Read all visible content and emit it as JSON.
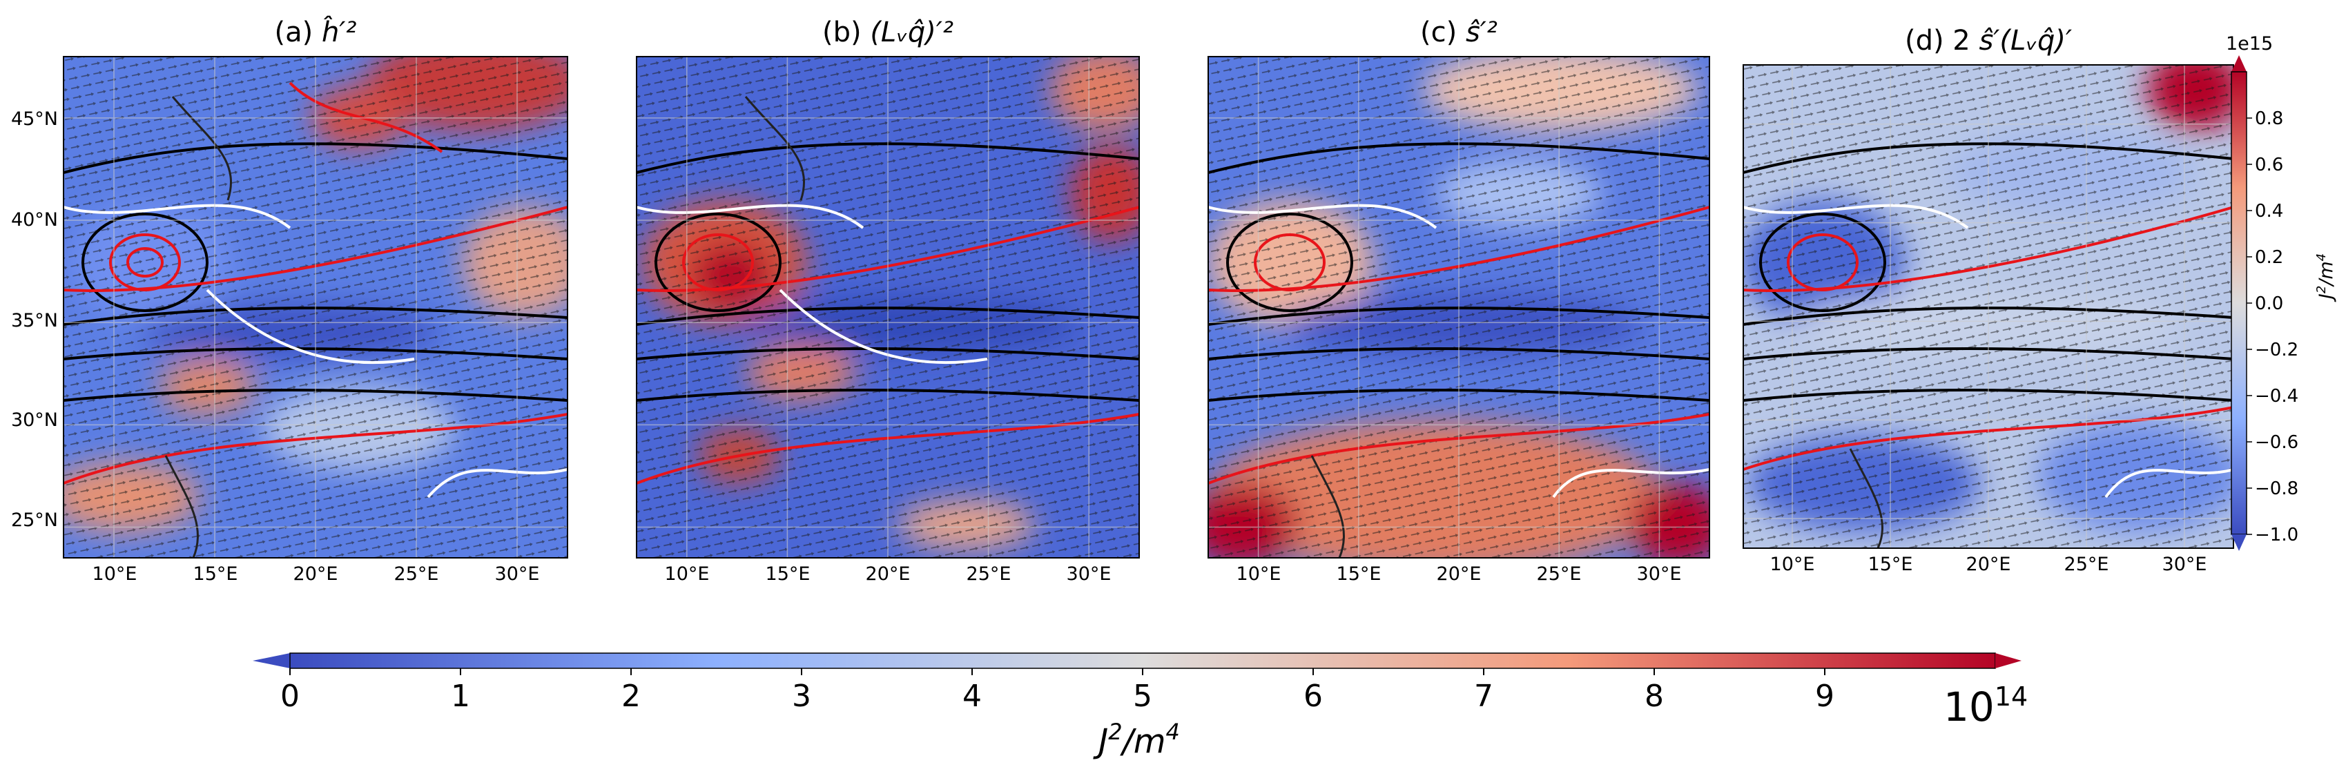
{
  "chart_data": {
    "type": "heatmap",
    "colormap": "coolwarm",
    "panels": [
      {
        "id": "a",
        "title_prefix": "(a) ",
        "title_math": "ĥ′²",
        "xlim": [
          7.5,
          32.5
        ],
        "ylim": [
          23.5,
          48
        ],
        "xticks": [
          "10°E",
          "15°E",
          "20°E",
          "25°E",
          "30°E"
        ],
        "xtick_values": [
          10,
          15,
          20,
          25,
          30
        ],
        "yticks": [
          "25°N",
          "30°N",
          "35°N",
          "40°N",
          "45°N"
        ],
        "ytick_values": [
          25,
          30,
          35,
          40,
          45
        ]
      },
      {
        "id": "b",
        "title_prefix": "(b) ",
        "title_math": "(Lᵥq̂)′²",
        "xlim": [
          7.5,
          32.5
        ],
        "ylim": [
          23.5,
          48
        ],
        "xticks": [
          "10°E",
          "15°E",
          "20°E",
          "25°E",
          "30°E"
        ],
        "xtick_values": [
          10,
          15,
          20,
          25,
          30
        ]
      },
      {
        "id": "c",
        "title_prefix": "(c) ",
        "title_math": "ŝ′²",
        "xlim": [
          7.5,
          32.5
        ],
        "ylim": [
          23.5,
          48
        ],
        "xticks": [
          "10°E",
          "15°E",
          "20°E",
          "25°E",
          "30°E"
        ],
        "xtick_values": [
          10,
          15,
          20,
          25,
          30
        ]
      },
      {
        "id": "d",
        "title_prefix": "(d) 2 ",
        "title_math": "ŝ′(Lᵥq̂)′",
        "xlim": [
          7.5,
          32.5
        ],
        "ylim": [
          23.5,
          48
        ],
        "xticks": [
          "10°E",
          "15°E",
          "20°E",
          "25°E",
          "30°E"
        ],
        "xtick_values": [
          10,
          15,
          20,
          25,
          30
        ]
      }
    ],
    "colorbar_main": {
      "orientation": "horizontal",
      "ticks": [
        "0",
        "1",
        "2",
        "3",
        "4",
        "5",
        "6",
        "7",
        "8",
        "9"
      ],
      "range": [
        0,
        10
      ],
      "offset_text": "10",
      "offset_exp": "14",
      "label_base": "J",
      "label_sup": "2",
      "label_mid": "/m",
      "label_sup2": "4"
    },
    "colorbar_d": {
      "orientation": "vertical",
      "ticks": [
        "0.8",
        "0.6",
        "0.4",
        "0.2",
        "0.0",
        "−0.2",
        "−0.4",
        "−0.6",
        "−0.8",
        "−1.0"
      ],
      "range": [
        -1.0,
        1.0
      ],
      "offset_text": "1e15",
      "label_base": "J",
      "label_sup": "2",
      "label_mid": "/m",
      "label_sup2": "4"
    },
    "colors": {
      "contour_positive": "#e8141a",
      "contour_negative": "#ffffff",
      "contour_geopotential": "#000000",
      "vectors": "#1a1a1a",
      "coast": "#222222",
      "grid": "#cccccc"
    }
  }
}
